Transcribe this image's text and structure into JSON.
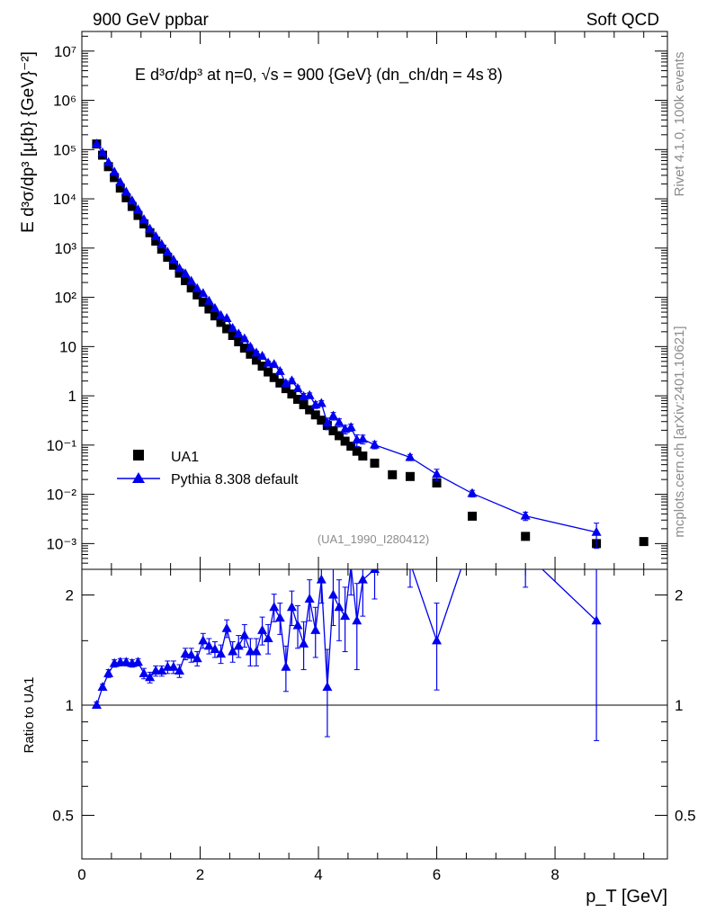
{
  "header": {
    "left": "900 GeV ppbar",
    "right": "Soft QCD"
  },
  "side_labels": {
    "rivet": "Rivet 4.1.0,  100k events",
    "mcplots": "mcplots.cern.ch [arXiv:2401.10621]"
  },
  "chart_data": {
    "type": "scatter",
    "title": "E  d³σ/dp³ at η=0, √s = 900 {GeV} (dn_ch/dη = 4s ̇8)",
    "ylabel": "E d³σ/dp³ [μ{b} {GeV}⁻²]",
    "xlabel": "p_T [GeV]",
    "ratio_ylabel": "Ratio to UA1",
    "watermark": "(UA1_1990_I280412)",
    "xlim": [
      0,
      9.9
    ],
    "ylim": [
      0.0003,
      25000000
    ],
    "yscale": "log",
    "ratio_ylim": [
      0.38,
      2.35
    ],
    "ratio_scale": "log",
    "x_ticks": [
      "0",
      "2",
      "4",
      "6",
      "8"
    ],
    "y_ticks": [
      "10⁻³",
      "10⁻²",
      "10⁻¹",
      "1",
      "10",
      "10²",
      "10³",
      "10⁴",
      "10⁵",
      "10⁶",
      "10⁷"
    ],
    "ratio_ticks": [
      "0.5",
      "1",
      "2"
    ],
    "legend": [
      {
        "name": "UA1",
        "marker": "square",
        "color": "#000000"
      },
      {
        "name": "Pythia 8.308 default",
        "marker": "triangle",
        "color": "#0000ee"
      }
    ],
    "ua1": {
      "x": [
        0.25,
        0.35,
        0.45,
        0.55,
        0.65,
        0.75,
        0.85,
        0.95,
        1.05,
        1.15,
        1.25,
        1.35,
        1.45,
        1.55,
        1.65,
        1.75,
        1.85,
        1.95,
        2.05,
        2.15,
        2.25,
        2.35,
        2.45,
        2.55,
        2.65,
        2.75,
        2.85,
        2.95,
        3.05,
        3.15,
        3.25,
        3.35,
        3.45,
        3.55,
        3.65,
        3.75,
        3.85,
        3.95,
        4.05,
        4.15,
        4.25,
        4.35,
        4.45,
        4.55,
        4.65,
        4.75,
        4.95,
        5.25,
        5.55,
        6.0,
        6.6,
        7.5,
        8.7,
        9.5
      ],
      "y": [
        130000,
        77000,
        45000,
        27000,
        16500,
        10500,
        7000,
        4600,
        3100,
        2050,
        1380,
        950,
        650,
        450,
        310,
        218,
        155,
        112,
        80,
        58,
        42,
        31,
        23,
        16.8,
        12.5,
        9.3,
        7.0,
        5.3,
        4.0,
        3.05,
        2.35,
        1.82,
        1.4,
        1.09,
        0.85,
        0.66,
        0.52,
        0.41,
        0.32,
        0.25,
        0.195,
        0.155,
        0.12,
        0.095,
        0.075,
        0.06,
        0.043,
        0.025,
        0.023,
        0.017,
        0.0036,
        0.0014,
        0.001,
        0.0011
      ]
    },
    "pythia": {
      "x": [
        0.25,
        0.35,
        0.45,
        0.55,
        0.65,
        0.75,
        0.85,
        0.95,
        1.05,
        1.15,
        1.25,
        1.35,
        1.45,
        1.55,
        1.65,
        1.75,
        1.85,
        1.95,
        2.05,
        2.15,
        2.25,
        2.35,
        2.45,
        2.55,
        2.65,
        2.75,
        2.85,
        2.95,
        3.05,
        3.15,
        3.25,
        3.35,
        3.45,
        3.55,
        3.65,
        3.75,
        3.85,
        3.95,
        4.05,
        4.15,
        4.25,
        4.35,
        4.45,
        4.55,
        4.65,
        4.75,
        4.95,
        5.55,
        6.0,
        6.6,
        7.5,
        8.7
      ],
      "ratio": [
        1.0,
        1.12,
        1.22,
        1.3,
        1.31,
        1.31,
        1.3,
        1.31,
        1.22,
        1.19,
        1.24,
        1.24,
        1.27,
        1.27,
        1.24,
        1.38,
        1.37,
        1.34,
        1.5,
        1.45,
        1.42,
        1.38,
        1.62,
        1.4,
        1.45,
        1.55,
        1.4,
        1.4,
        1.6,
        1.52,
        1.85,
        1.73,
        1.27,
        1.85,
        1.65,
        1.47,
        1.95,
        1.6,
        2.2,
        1.12,
        2.0,
        1.85,
        1.75,
        2.4,
        1.7,
        2.2,
        2.35,
        2.45,
        1.5,
        2.9,
        2.6,
        1.7
      ],
      "ratio_err": [
        0.02,
        0.02,
        0.03,
        0.03,
        0.03,
        0.03,
        0.03,
        0.03,
        0.04,
        0.04,
        0.04,
        0.04,
        0.05,
        0.05,
        0.05,
        0.05,
        0.06,
        0.06,
        0.07,
        0.07,
        0.07,
        0.08,
        0.09,
        0.09,
        0.1,
        0.11,
        0.12,
        0.12,
        0.14,
        0.14,
        0.16,
        0.17,
        0.18,
        0.2,
        0.22,
        0.22,
        0.25,
        0.25,
        0.3,
        0.3,
        0.35,
        0.35,
        0.35,
        0.4,
        0.45,
        0.45,
        0.4,
        0.35,
        0.4,
        0.45,
        0.5,
        0.9
      ]
    }
  }
}
